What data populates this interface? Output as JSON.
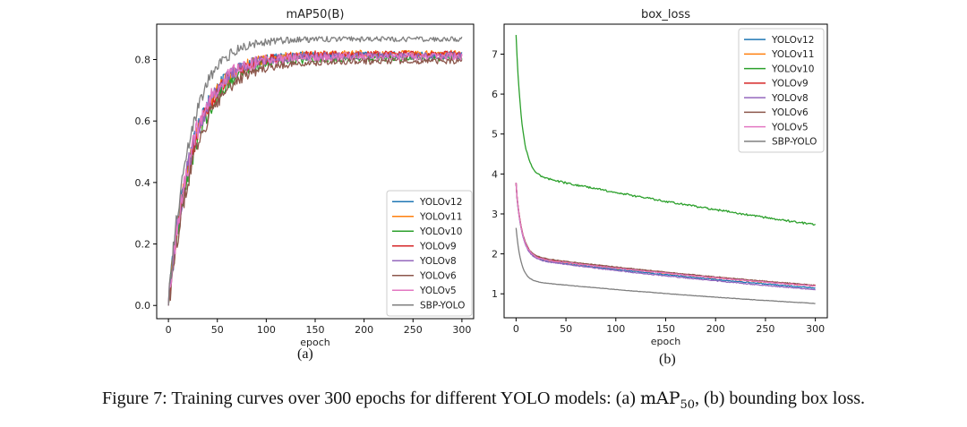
{
  "figure": {
    "caption_prefix": "Figure 7: Training curves over 300 epochs for different YOLO models: (a) ",
    "caption_math_main": "mAP",
    "caption_math_sub": "50",
    "caption_suffix": ", (b) bounding box loss.",
    "sub_labels": [
      "(a)",
      "(b)"
    ]
  },
  "chart_data": [
    {
      "type": "line",
      "title": "mAP50(B)",
      "xlabel": "epoch",
      "ylabel": "",
      "xlim": [
        -12,
        312
      ],
      "ylim": [
        -0.043,
        0.915
      ],
      "xticks": [
        0,
        50,
        100,
        150,
        200,
        250,
        300
      ],
      "yticks": [
        0.0,
        0.2,
        0.4,
        0.6,
        0.8
      ],
      "ytick_decimals": 1,
      "legend_position": "lower-right",
      "series": [
        {
          "name": "YOLOv12",
          "color": "#1f77b4",
          "start": 0.0,
          "final": 0.815,
          "k": 25,
          "noise": 0.028,
          "seed": 1
        },
        {
          "name": "YOLOv11",
          "color": "#ff7f0e",
          "start": 0.0,
          "final": 0.82,
          "k": 26,
          "noise": 0.028,
          "seed": 2
        },
        {
          "name": "YOLOv10",
          "color": "#2ca02c",
          "start": 0.0,
          "final": 0.805,
          "k": 27,
          "noise": 0.028,
          "seed": 3
        },
        {
          "name": "YOLOv9",
          "color": "#d62728",
          "start": 0.0,
          "final": 0.818,
          "k": 26,
          "noise": 0.028,
          "seed": 4
        },
        {
          "name": "YOLOv8",
          "color": "#9467bd",
          "start": 0.0,
          "final": 0.812,
          "k": 25,
          "noise": 0.03,
          "seed": 5
        },
        {
          "name": "YOLOv6",
          "color": "#8c564b",
          "start": 0.0,
          "final": 0.795,
          "k": 28,
          "noise": 0.026,
          "seed": 6
        },
        {
          "name": "YOLOv5",
          "color": "#e377c2",
          "start": 0.0,
          "final": 0.81,
          "k": 24,
          "noise": 0.032,
          "seed": 7
        },
        {
          "name": "SBP-YOLO",
          "color": "#7f7f7f",
          "start": 0.0,
          "final": 0.866,
          "k": 22,
          "noise": 0.022,
          "seed": 8
        }
      ]
    },
    {
      "type": "line",
      "title": "box_loss",
      "xlabel": "epoch",
      "ylabel": "",
      "xlim": [
        -12,
        312
      ],
      "ylim": [
        0.4,
        7.75
      ],
      "xticks": [
        0,
        50,
        100,
        150,
        200,
        250,
        300
      ],
      "yticks": [
        1,
        2,
        3,
        4,
        5,
        6,
        7
      ],
      "ytick_decimals": 0,
      "legend_position": "top-right",
      "series": [
        {
          "name": "YOLOv12",
          "color": "#1f77b4",
          "start": 3.78,
          "fast_amp": 1.75,
          "fast_k": 6,
          "slow_a": 1.91,
          "slow_b": 0.0017,
          "noise": 0.012,
          "seed": 11
        },
        {
          "name": "YOLOv11",
          "color": "#ff7f0e",
          "start": 3.78,
          "fast_amp": 1.75,
          "fast_k": 6,
          "slow_a": 1.93,
          "slow_b": 0.0016,
          "noise": 0.012,
          "seed": 12
        },
        {
          "name": "YOLOv10",
          "color": "#2ca02c",
          "start": 7.48,
          "fast_amp": 3.45,
          "fast_k": 6,
          "slow_a": 4.03,
          "slow_b": 0.0013,
          "noise": 0.025,
          "seed": 13
        },
        {
          "name": "YOLOv9",
          "color": "#d62728",
          "start": 3.78,
          "fast_amp": 1.75,
          "fast_k": 6,
          "slow_a": 1.95,
          "slow_b": 0.0016,
          "noise": 0.012,
          "seed": 14
        },
        {
          "name": "YOLOv8",
          "color": "#9467bd",
          "start": 3.78,
          "fast_amp": 1.78,
          "fast_k": 6,
          "slow_a": 1.9,
          "slow_b": 0.0018,
          "noise": 0.012,
          "seed": 15
        },
        {
          "name": "YOLOv6",
          "color": "#8c564b",
          "start": 3.75,
          "fast_amp": 1.72,
          "fast_k": 6,
          "slow_a": 1.96,
          "slow_b": 0.0016,
          "noise": 0.012,
          "seed": 16
        },
        {
          "name": "YOLOv5",
          "color": "#e377c2",
          "start": 3.78,
          "fast_amp": 1.75,
          "fast_k": 6,
          "slow_a": 1.93,
          "slow_b": 0.0016,
          "noise": 0.012,
          "seed": 17
        },
        {
          "name": "SBP-YOLO",
          "color": "#7f7f7f",
          "start": 2.65,
          "fast_amp": 1.31,
          "fast_k": 5,
          "slow_a": 1.34,
          "slow_b": 0.0019,
          "noise": 0.005,
          "seed": 18
        }
      ]
    }
  ]
}
